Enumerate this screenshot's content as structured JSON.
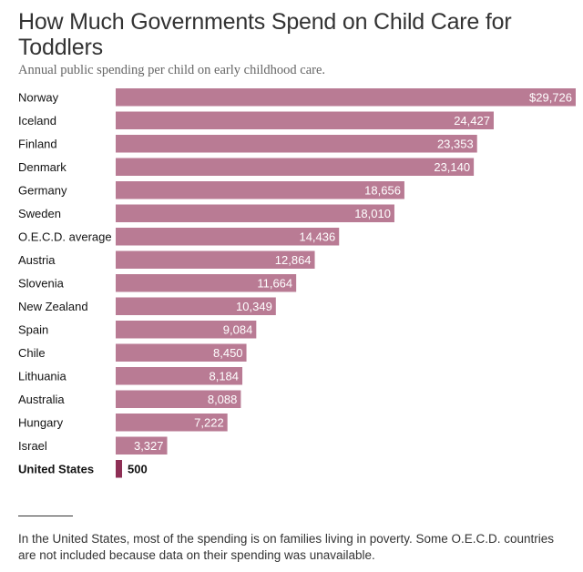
{
  "title": "How Much Governments Spend on Child Care for Toddlers",
  "subtitle": "Annual public spending per child on early childhood care.",
  "footnote": "In the United States, most of the spending is on families living in poverty. Some O.E.C.D. countries are not included because data on their spending was unavailable.",
  "colors": {
    "bar": "#b97b94",
    "highlight_bar": "#8e2f55",
    "bar_label": "#ffffff",
    "highlight_label": "#121212"
  },
  "chart_data": {
    "type": "bar",
    "orientation": "horizontal",
    "categories": [
      "Norway",
      "Iceland",
      "Finland",
      "Denmark",
      "Germany",
      "Sweden",
      "O.E.C.D. average",
      "Austria",
      "Slovenia",
      "New Zealand",
      "Spain",
      "Chile",
      "Lithuania",
      "Australia",
      "Hungary",
      "Israel",
      "United States"
    ],
    "values": [
      29726,
      24427,
      23353,
      23140,
      18656,
      18010,
      14436,
      12864,
      11664,
      10349,
      9084,
      8450,
      8184,
      8088,
      7222,
      3327,
      500
    ],
    "value_labels": [
      "$29,726",
      "24,427",
      "23,353",
      "23,140",
      "18,656",
      "18,010",
      "14,436",
      "12,864",
      "11,664",
      "10,349",
      "9,084",
      "8,450",
      "8,184",
      "8,088",
      "7,222",
      "3,327",
      "500"
    ],
    "highlight": "United States",
    "xlim": [
      0,
      29726
    ],
    "grid": false,
    "legend": "none",
    "title": "How Much Governments Spend on Child Care for Toddlers",
    "subtitle": "Annual public spending per child on early childhood care.",
    "xlabel": "",
    "ylabel": ""
  }
}
